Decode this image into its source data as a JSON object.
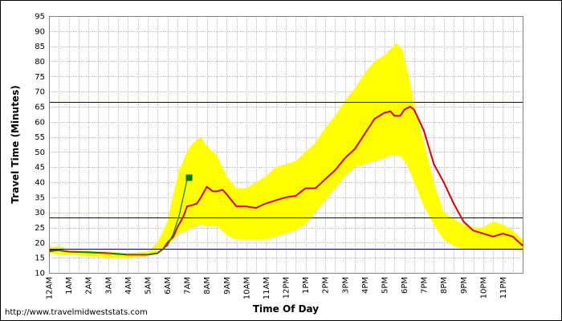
{
  "source_url": "http://www.travelmidweststats.com",
  "colors": {
    "band": "#FFFF00",
    "today": "#008000",
    "average": "#E00000",
    "reference": "#000080",
    "grid": "#BBBBBB",
    "plot_border": "#808080"
  },
  "chart_data": {
    "type": "line",
    "title": "",
    "xlabel": "Time Of Day",
    "ylabel": "Travel Time (Minutes)",
    "ylim": [
      10,
      95
    ],
    "y_ticks": [
      10,
      15,
      20,
      25,
      30,
      35,
      40,
      45,
      50,
      55,
      60,
      65,
      70,
      75,
      80,
      85,
      90,
      95
    ],
    "xlim": [
      0,
      24
    ],
    "x_unit": "hours after midnight",
    "x_tick_labels": [
      "12AM",
      "1AM",
      "2AM",
      "3AM",
      "4AM",
      "5AM",
      "6AM",
      "7AM",
      "8AM",
      "9AM",
      "10AM",
      "11AM",
      "12PM",
      "1PM",
      "2PM",
      "3PM",
      "4PM",
      "5PM",
      "6PM",
      "7PM",
      "8PM",
      "9PM",
      "10PM",
      "11PM"
    ],
    "grid": true,
    "legend": "none",
    "reference_lines": [
      66.7,
      28.3,
      18.0
    ],
    "series": [
      {
        "kind": "band",
        "x": [
          0,
          0.5,
          1,
          2,
          3,
          4,
          5,
          5.5,
          6,
          6.3,
          6.6,
          7,
          7.3,
          7.7,
          8,
          8.5,
          9,
          9.5,
          10,
          10.5,
          11,
          11.5,
          12,
          12.5,
          13,
          13.5,
          14,
          14.5,
          15,
          15.5,
          16,
          16.5,
          17,
          17.3,
          17.6,
          17.9,
          18.2,
          18.5,
          19,
          19.5,
          20,
          20.5,
          21,
          21.5,
          22,
          22.5,
          23,
          23.5,
          24
        ],
        "upper": [
          18.5,
          18.8,
          18,
          17.5,
          17,
          16.5,
          17,
          20,
          27,
          36,
          44,
          50,
          53,
          55,
          52,
          49,
          42,
          38,
          38,
          40,
          42,
          45,
          46,
          47,
          50,
          53,
          58,
          62,
          67,
          71,
          76,
          80,
          82,
          84,
          86,
          84,
          76,
          66,
          53,
          40,
          30,
          28,
          26,
          25,
          25,
          27,
          26,
          24,
          21
        ],
        "lower": [
          16.5,
          16,
          16,
          15.5,
          15,
          15,
          15.5,
          17,
          19,
          21,
          23,
          24,
          25,
          26,
          25.5,
          25.5,
          22.5,
          21,
          21,
          21,
          21,
          22,
          23,
          24,
          26,
          30,
          34,
          38,
          42,
          45,
          46,
          47,
          48,
          49,
          49,
          48,
          45,
          40,
          32,
          26,
          21,
          19,
          18,
          17.5,
          17.5,
          17.5,
          17.5,
          17.5,
          17
        ]
      },
      {
        "kind": "average",
        "x": [
          0,
          0.5,
          1,
          2,
          3,
          4,
          5,
          5.5,
          5.8,
          6,
          6.3,
          6.5,
          6.8,
          7,
          7.3,
          7.5,
          7.7,
          8,
          8.3,
          8.5,
          8.8,
          9,
          9.5,
          10,
          10.5,
          11,
          11.5,
          12,
          12.5,
          13,
          13.5,
          14,
          14.5,
          15,
          15.5,
          16,
          16.5,
          17,
          17.3,
          17.5,
          17.8,
          18,
          18.3,
          18.5,
          19,
          19.5,
          20,
          20.5,
          21,
          21.5,
          22,
          22.5,
          23,
          23.5,
          24
        ],
        "values": [
          17.5,
          17.5,
          17,
          16.8,
          16.5,
          16,
          16,
          16.5,
          18,
          20,
          22,
          25,
          28.5,
          32,
          32.5,
          33,
          35,
          38.5,
          37,
          37,
          37.5,
          36,
          32,
          32,
          31.5,
          33,
          34,
          35,
          35.5,
          38,
          38,
          41,
          44,
          48,
          51,
          56,
          61,
          63,
          63.5,
          62,
          62,
          64,
          65,
          64,
          57,
          46,
          40,
          33,
          27,
          24,
          23,
          22,
          23,
          22,
          19
        ]
      },
      {
        "kind": "today",
        "x": [
          0,
          0.5,
          1,
          2,
          3,
          4,
          5,
          5.5,
          6,
          6.3,
          6.6,
          6.8,
          7,
          7.05,
          7.1
        ],
        "values": [
          17,
          17.5,
          17,
          16.8,
          16.5,
          16,
          16,
          16.5,
          19,
          23,
          29,
          35,
          41,
          41.5,
          41.5
        ]
      }
    ],
    "current_marker": {
      "x": 7.1,
      "y": 41.5
    }
  }
}
